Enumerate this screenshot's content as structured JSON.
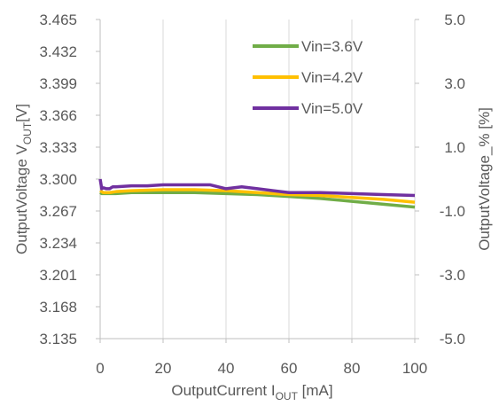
{
  "chart_data": {
    "type": "line",
    "title": "",
    "xlabel": {
      "main": "OutputCurrent  I",
      "sub": "OUT",
      "unit": " [mA]"
    },
    "ylabel_left": {
      "main": "OutputVoltage  V",
      "sub": "OUT",
      "unit": "[V]"
    },
    "ylabel_right": "OutputVoltage_% [%]",
    "xlim": [
      0,
      100
    ],
    "ylim_left": [
      3.135,
      3.465
    ],
    "ylim_right": [
      -5.0,
      5.0
    ],
    "x_ticks": [
      "0",
      "20",
      "40",
      "60",
      "80",
      "100"
    ],
    "y_left_ticks": [
      "3.465",
      "3.432",
      "3.399",
      "3.366",
      "3.333",
      "3.300",
      "3.267",
      "3.234",
      "3.201",
      "3.168",
      "3.135"
    ],
    "y_right_ticks": [
      "5.0",
      "3.0",
      "1.0",
      "-1.0",
      "-3.0",
      "-5.0"
    ],
    "grid": {
      "vertical": true,
      "horizontal": false
    },
    "legend_position": "top-right",
    "series": [
      {
        "name": "Vin=3.6V",
        "color": "#70AD47",
        "x": [
          0,
          0.5,
          1,
          2,
          3,
          5,
          10,
          20,
          30,
          40,
          50,
          60,
          70,
          80,
          90,
          100
        ],
        "y": [
          3.286,
          3.285,
          3.285,
          3.285,
          3.285,
          3.285,
          3.286,
          3.286,
          3.286,
          3.285,
          3.284,
          3.282,
          3.28,
          3.277,
          3.274,
          3.271
        ]
      },
      {
        "name": "Vin=4.2V",
        "color": "#FFC000",
        "x": [
          0,
          0.5,
          1,
          2,
          3,
          5,
          10,
          20,
          30,
          40,
          50,
          60,
          70,
          80,
          90,
          100
        ],
        "y": [
          3.288,
          3.287,
          3.286,
          3.286,
          3.286,
          3.287,
          3.288,
          3.289,
          3.289,
          3.288,
          3.286,
          3.284,
          3.283,
          3.281,
          3.279,
          3.276
        ]
      },
      {
        "name": "Vin=5.0V",
        "color": "#7030A0",
        "x": [
          0,
          0.5,
          1,
          2,
          3,
          4,
          5,
          10,
          15,
          20,
          25,
          30,
          35,
          40,
          45,
          50,
          55,
          60,
          65,
          70,
          80,
          90,
          100
        ],
        "y": [
          3.3,
          3.29,
          3.291,
          3.29,
          3.29,
          3.292,
          3.292,
          3.293,
          3.293,
          3.294,
          3.294,
          3.294,
          3.294,
          3.29,
          3.292,
          3.29,
          3.288,
          3.286,
          3.286,
          3.286,
          3.285,
          3.284,
          3.283
        ]
      }
    ]
  }
}
